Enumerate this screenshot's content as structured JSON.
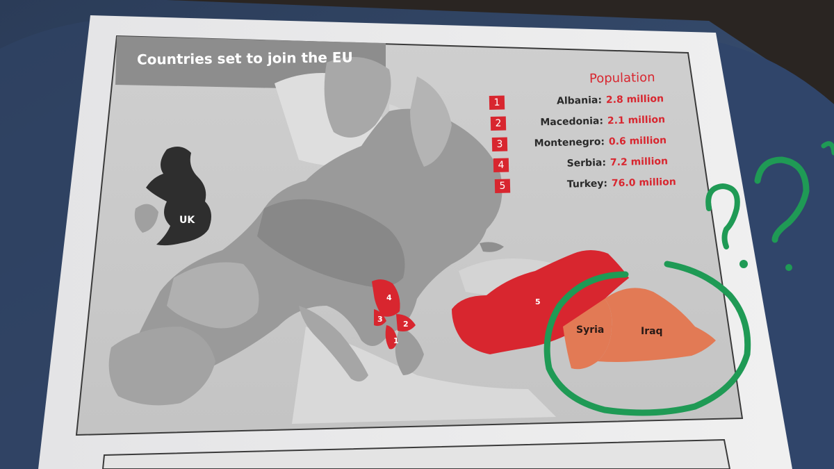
{
  "map": {
    "title": "Countries set to join the EU",
    "uk_label": "UK",
    "population_heading": "Population",
    "legend": [
      {
        "num": "1",
        "country": "Albania:",
        "population": "2.8 million"
      },
      {
        "num": "2",
        "country": "Macedonia:",
        "population": "2.1 million"
      },
      {
        "num": "3",
        "country": "Montenegro:",
        "population": "0.6 million"
      },
      {
        "num": "4",
        "country": "Serbia:",
        "population": "7.2 million"
      },
      {
        "num": "5",
        "country": "Turkey:",
        "population": "76.0 million"
      }
    ],
    "region_numbers": {
      "albania": "1",
      "macedonia": "2",
      "montenegro": "3",
      "serbia": "4",
      "turkey": "5"
    },
    "annotations": {
      "syria": "Syria",
      "iraq": "Iraq"
    }
  },
  "colors": {
    "accent_red": "#d8262f",
    "uk_fill": "#2e2e2e",
    "syria_iraq_fill": "#e27a55",
    "marker_green": "#1f9a55"
  }
}
